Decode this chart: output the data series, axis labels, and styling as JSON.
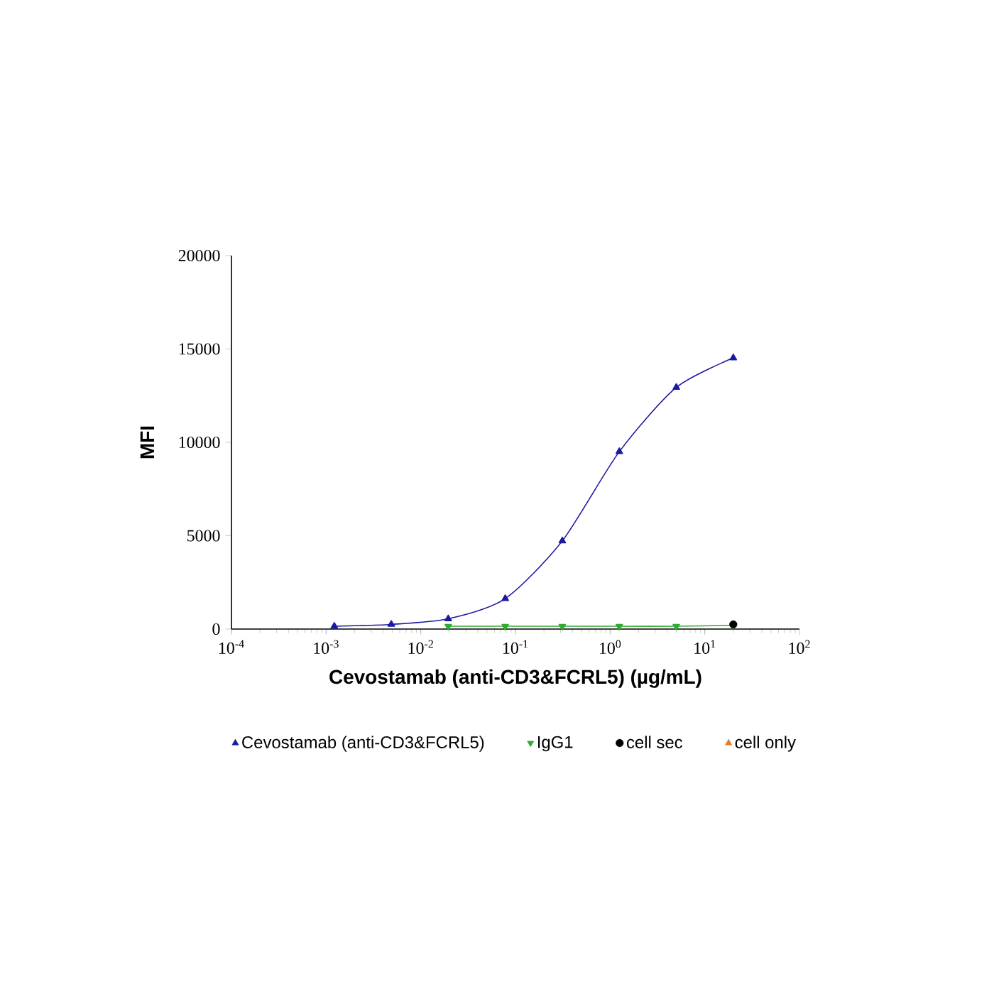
{
  "chart_data": {
    "type": "line",
    "xlabel": "Cevostamab (anti-CD3&FCRL5) (µg/mL)",
    "ylabel": "MFI",
    "log": "x",
    "xlim": [
      0.0001,
      100
    ],
    "xticks": [
      {
        "value": 0.0001,
        "label": "10$^{-4}$"
      },
      {
        "value": 0.001,
        "label": "10$^{-3}$"
      },
      {
        "value": 0.01,
        "label": "10$^{-2}$"
      },
      {
        "value": 0.1,
        "label": "10$^{-1}$"
      },
      {
        "value": 1,
        "label": "10$^{0}$"
      },
      {
        "value": 10,
        "label": "10$^{1}$"
      },
      {
        "value": 100,
        "label": "10$^{2}$"
      }
    ],
    "ylim": [
      0,
      20000
    ],
    "yticks": [
      0,
      5000,
      10000,
      15000,
      20000
    ],
    "legend": "bottom",
    "grid": false,
    "series": [
      {
        "name": "Cevostamab (anti-CD3&FCRL5)",
        "marker": "triangle",
        "color": "#1a1a9e",
        "x": [
          0.00122,
          0.00488,
          0.0195,
          0.078,
          0.3125,
          1.25,
          5,
          20
        ],
        "values": [
          150,
          250,
          550,
          1630,
          4720,
          9500,
          12940,
          14520
        ]
      },
      {
        "name": "IgG1",
        "marker": "triangle-down",
        "color": "#33aa33",
        "x": [
          0.0195,
          0.078,
          0.3125,
          1.25,
          5,
          20
        ],
        "values": [
          150,
          150,
          150,
          150,
          150,
          200
        ]
      },
      {
        "name": "cell sec",
        "type": "scatter",
        "marker": "circle",
        "color": "#000000",
        "x": [
          20
        ],
        "values": [
          250
        ]
      },
      {
        "name": "cell only",
        "type": "scatter",
        "marker": "triangle",
        "color": "#e87b22"
      }
    ]
  }
}
